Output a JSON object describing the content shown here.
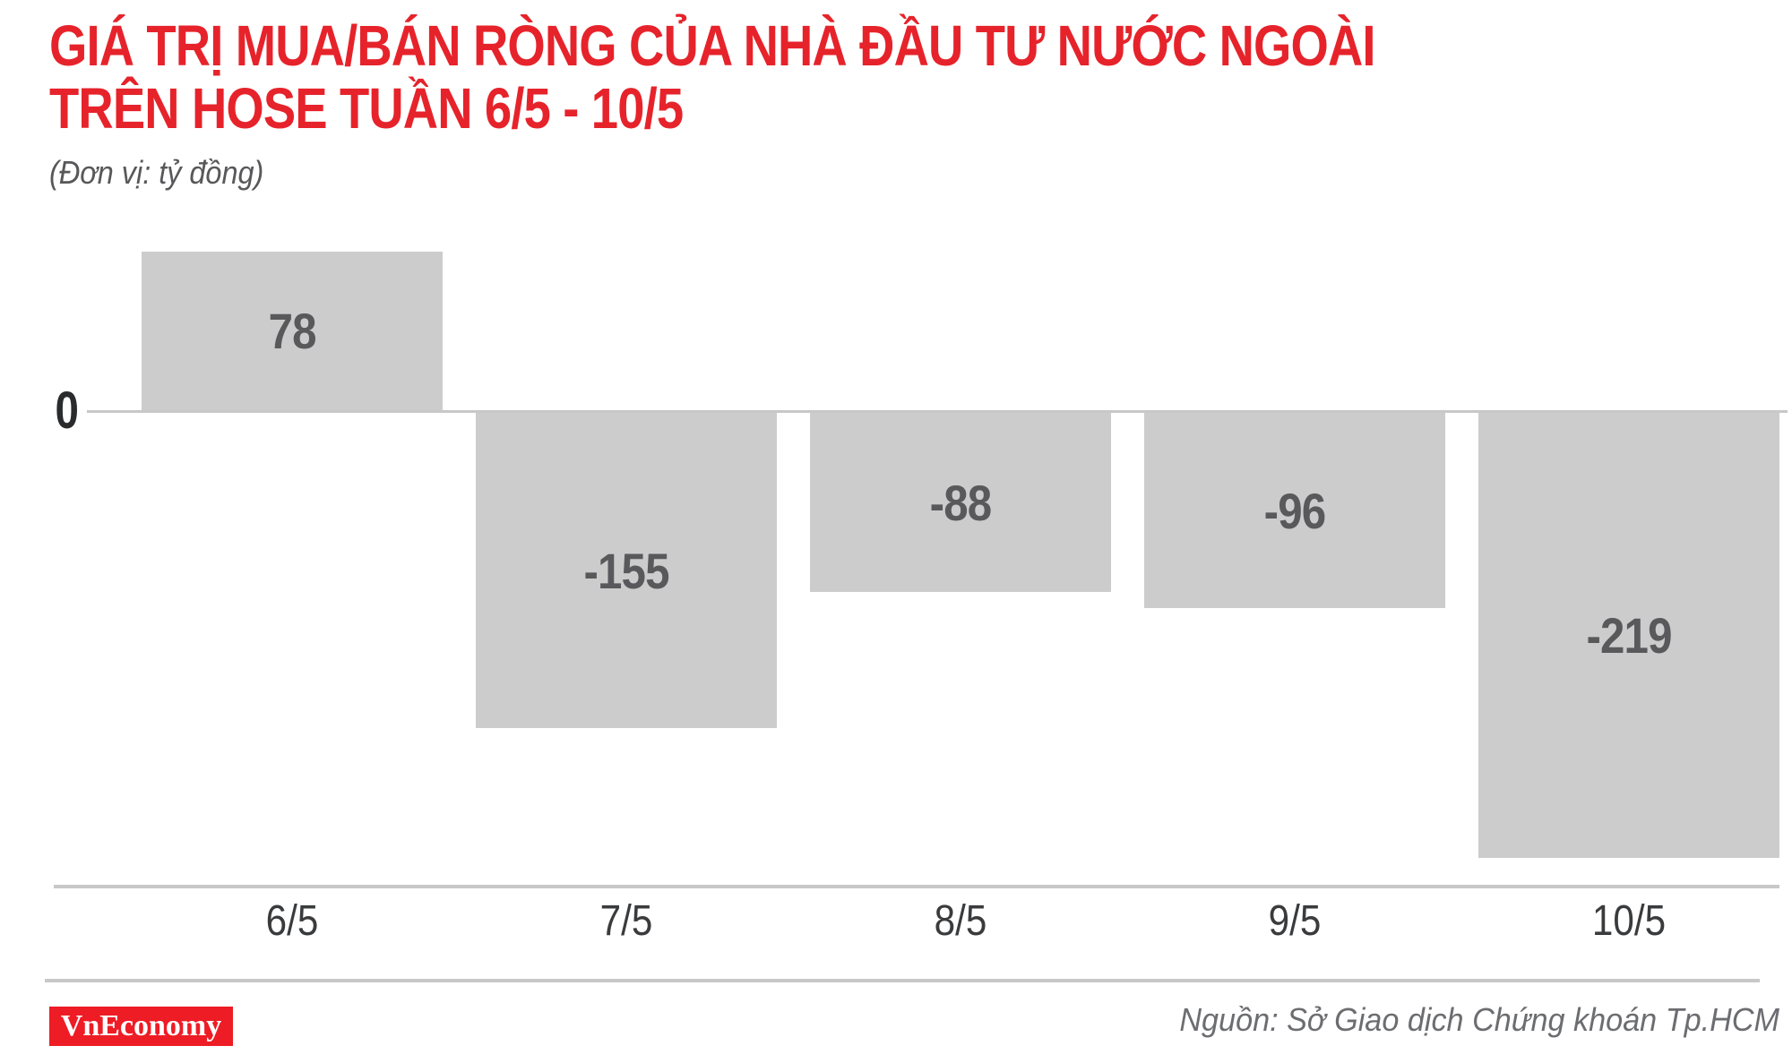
{
  "header": {
    "title_line1": "GIÁ TRỊ MUA/BÁN RÒNG CỦA NHÀ ĐẦU TƯ NƯỚC NGOÀI",
    "title_line2": "TRÊN HOSE TUẦN 6/5 - 10/5",
    "subtitle": "(Đơn vị: tỷ đồng)"
  },
  "chart_data": {
    "type": "bar",
    "title": "GIÁ TRỊ MUA/BÁN RÒNG CỦA NHÀ ĐẦU TƯ NƯỚC NGOÀI TRÊN HOSE TUẦN 6/5 - 10/5",
    "unit_label": "(Đơn vị: tỷ đồng)",
    "categories": [
      "6/5",
      "7/5",
      "8/5",
      "9/5",
      "10/5"
    ],
    "values": [
      78,
      -155,
      -88,
      -96,
      -219
    ],
    "data_labels": [
      "78",
      "-155",
      "-88",
      "-96",
      "-219"
    ],
    "xlabel": "",
    "ylabel": "tỷ đồng",
    "ylim": [
      -240,
      90
    ],
    "y_axis_ticks": [
      "0"
    ],
    "grid": false,
    "legend": false,
    "bar_color": "#cdcccc",
    "data_label_color": "#59595c"
  },
  "axis": {
    "zero_label": "0"
  },
  "footer": {
    "logo_text": "VnEconomy",
    "source": "Nguồn: Sở Giao dịch Chứng khoán Tp.HCM"
  },
  "colors": {
    "title_red": "#e6232b",
    "logo_red": "#ee1c25",
    "bar_gray": "#cdcccc",
    "bar_label": "#59595c",
    "axis_line": "#c9c8c8",
    "date_label": "#3a3b3d",
    "zero_label": "#2a2b2d",
    "subtitle_gray": "#58585a",
    "source_gray": "#6c6d70"
  }
}
